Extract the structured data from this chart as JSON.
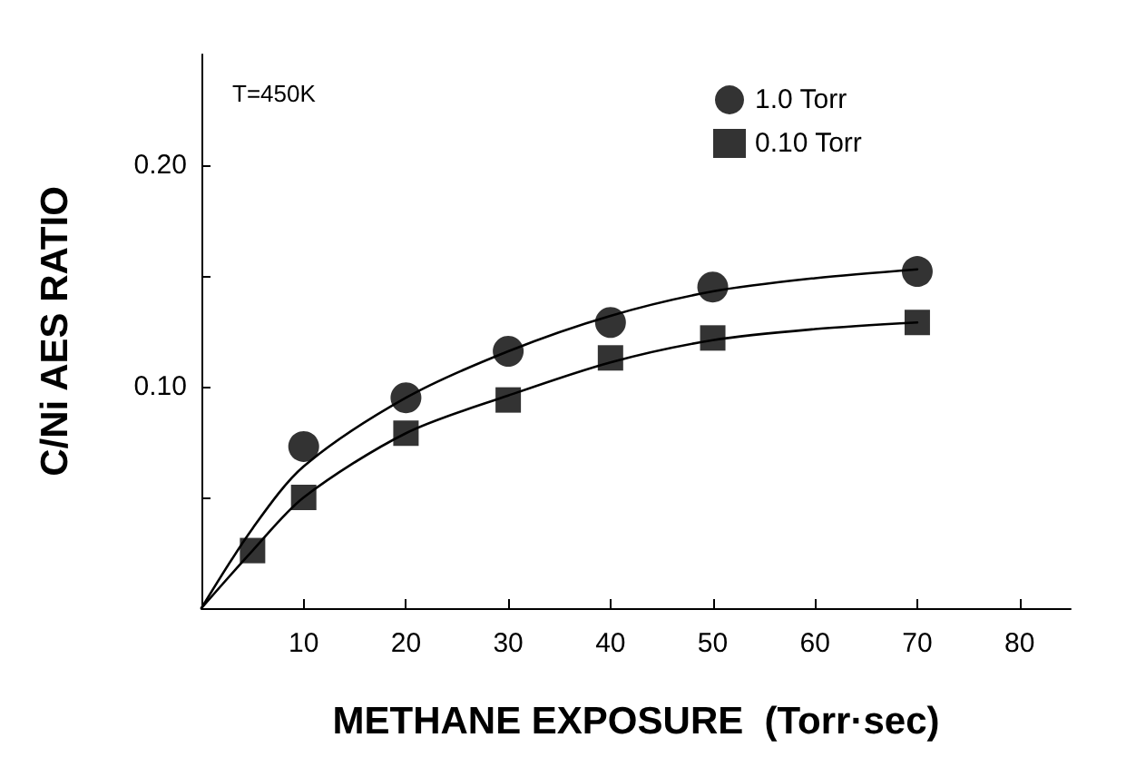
{
  "chart_data": {
    "type": "scatter",
    "xlabel": "METHANE EXPOSURE  (Torr·sec)",
    "ylabel": "C/Ni AES RATIO",
    "annotations": [
      "T=450K"
    ],
    "xlim": [
      0,
      85
    ],
    "xticks": [
      10,
      20,
      30,
      40,
      50,
      60,
      70,
      80
    ],
    "ylim": [
      0,
      0.25
    ],
    "yticks": [
      {
        "value": 0.05,
        "label": null
      },
      {
        "value": 0.1,
        "label": "0.10"
      },
      {
        "value": 0.15,
        "label": null
      },
      {
        "value": 0.2,
        "label": "0.20"
      }
    ],
    "grid": false,
    "legend": "top right",
    "series": [
      {
        "name": "1.0 Torr",
        "marker": "circle",
        "color": "#000000",
        "x": [
          10,
          20,
          30,
          40,
          50,
          70
        ],
        "values": [
          0.073,
          0.095,
          0.116,
          0.129,
          0.145,
          0.152
        ]
      },
      {
        "name": "0.10 Torr",
        "marker": "square",
        "color": "#000000",
        "x": [
          5,
          10,
          20,
          30,
          40,
          50,
          70
        ],
        "values": [
          0.026,
          0.05,
          0.079,
          0.094,
          0.113,
          0.122,
          0.129
        ]
      },
      {
        "type": "line",
        "marker": "none",
        "line_style": "solid",
        "color": "#000000",
        "x": [
          0,
          5,
          10,
          20,
          30,
          40,
          50,
          60,
          70
        ],
        "values": [
          0,
          0.036,
          0.064,
          0.095,
          0.116,
          0.132,
          0.143,
          0.149,
          0.153
        ]
      },
      {
        "type": "line",
        "marker": "none",
        "line_style": "solid",
        "color": "#000000",
        "x": [
          0,
          5,
          10,
          20,
          30,
          40,
          50,
          60,
          70
        ],
        "values": [
          0,
          0.026,
          0.05,
          0.079,
          0.096,
          0.111,
          0.121,
          0.126,
          0.129
        ]
      }
    ]
  }
}
